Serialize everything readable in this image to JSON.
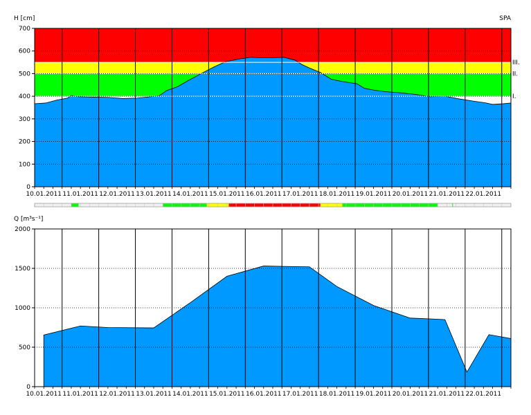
{
  "station": "SPA",
  "colors": {
    "red": "#ff0000",
    "yellow": "#ffff00",
    "green": "#00ff00",
    "blue": "#0099ff",
    "status_empty": "#f0f0f0"
  },
  "chart_data": [
    {
      "type": "area",
      "ylabel": "H [cm]",
      "ylim": [
        0,
        700
      ],
      "yticks": [
        "0",
        "100",
        "200",
        "300",
        "400",
        "500",
        "600",
        "700"
      ],
      "x_dates": [
        "10.01.2011",
        "11.01.2011",
        "12.01.2011",
        "13.01.2011",
        "14.01.2011",
        "15.01.2011",
        "16.01.2011",
        "17.01.2011",
        "18.01.2011",
        "19.01.2011",
        "20.01.2011",
        "21.01.2011",
        "22.01.2011"
      ],
      "x_start": "09.01.2011 18:00",
      "x_end": "23.01.2011 00:00",
      "grid": true,
      "thresholds": [
        {
          "label": "I.",
          "value": 400
        },
        {
          "label": "II.",
          "value": 500
        },
        {
          "label": "III.",
          "value": 550
        }
      ],
      "zones": [
        {
          "from": 400,
          "to": 500,
          "color": "green"
        },
        {
          "from": 500,
          "to": 550,
          "color": "yellow"
        },
        {
          "from": 550,
          "to": 700,
          "color": "red"
        }
      ],
      "series": [
        {
          "x": [
            0,
            0.3,
            0.6,
            0.9,
            1.0,
            1.2,
            1.6,
            2.0,
            2.4,
            2.8,
            3.0,
            3.4,
            3.6,
            3.9,
            4.2,
            4.6,
            4.9,
            5.2,
            5.6,
            5.9,
            6.2,
            6.5,
            6.8,
            7.1,
            7.3,
            7.5,
            7.8,
            8.1,
            8.4,
            8.8,
            9.0,
            9.3,
            9.6,
            10.0,
            10.4,
            10.8,
            11.2,
            11.6,
            12.0,
            12.3,
            12.5,
            12.8,
            13.0
          ],
          "y": [
            367,
            370,
            383,
            392,
            403,
            398,
            396,
            395,
            390,
            392,
            395,
            402,
            425,
            442,
            470,
            505,
            530,
            552,
            565,
            572,
            570,
            570,
            572,
            560,
            540,
            525,
            505,
            475,
            465,
            455,
            435,
            426,
            420,
            415,
            408,
            398,
            400,
            388,
            378,
            371,
            364,
            367,
            370
          ]
        }
      ]
    },
    {
      "type": "status_bar",
      "segments": [
        {
          "from": 0,
          "to": 1.0,
          "level": "empty"
        },
        {
          "from": 1.0,
          "to": 1.2,
          "level": "green"
        },
        {
          "from": 1.2,
          "to": 3.5,
          "level": "empty"
        },
        {
          "from": 3.5,
          "to": 4.7,
          "level": "green"
        },
        {
          "from": 4.7,
          "to": 5.3,
          "level": "yellow"
        },
        {
          "from": 5.3,
          "to": 7.8,
          "level": "red"
        },
        {
          "from": 7.8,
          "to": 8.4,
          "level": "yellow"
        },
        {
          "from": 8.4,
          "to": 11.0,
          "level": "green"
        },
        {
          "from": 11.0,
          "to": 11.4,
          "level": "empty"
        },
        {
          "from": 11.4,
          "to": 11.42,
          "level": "green"
        },
        {
          "from": 11.42,
          "to": 13.0,
          "level": "empty"
        }
      ]
    },
    {
      "type": "area",
      "ylabel": "Q [m³s⁻¹]",
      "ylim": [
        0,
        2000
      ],
      "yticks": [
        "0",
        "500",
        "1000",
        "1500",
        "2000"
      ],
      "x_dates": [
        "10.01.2011",
        "11.01.2011",
        "12.01.2011",
        "13.01.2011",
        "14.01.2011",
        "15.01.2011",
        "16.01.2011",
        "17.01.2011",
        "18.01.2011",
        "19.01.2011",
        "20.01.2011",
        "21.01.2011",
        "22.01.2011"
      ],
      "grid": true,
      "series": [
        {
          "x": [
            0.25,
            1.25,
            2.0,
            3.25,
            4.25,
            5.25,
            6.25,
            6.8,
            7.5,
            8.25,
            9.25,
            10.25,
            11.0,
            11.2,
            11.8,
            12.4,
            13.0
          ],
          "y": [
            655,
            770,
            750,
            745,
            1065,
            1400,
            1530,
            1525,
            1520,
            1270,
            1030,
            870,
            855,
            850,
            185,
            660,
            610
          ]
        }
      ]
    }
  ]
}
